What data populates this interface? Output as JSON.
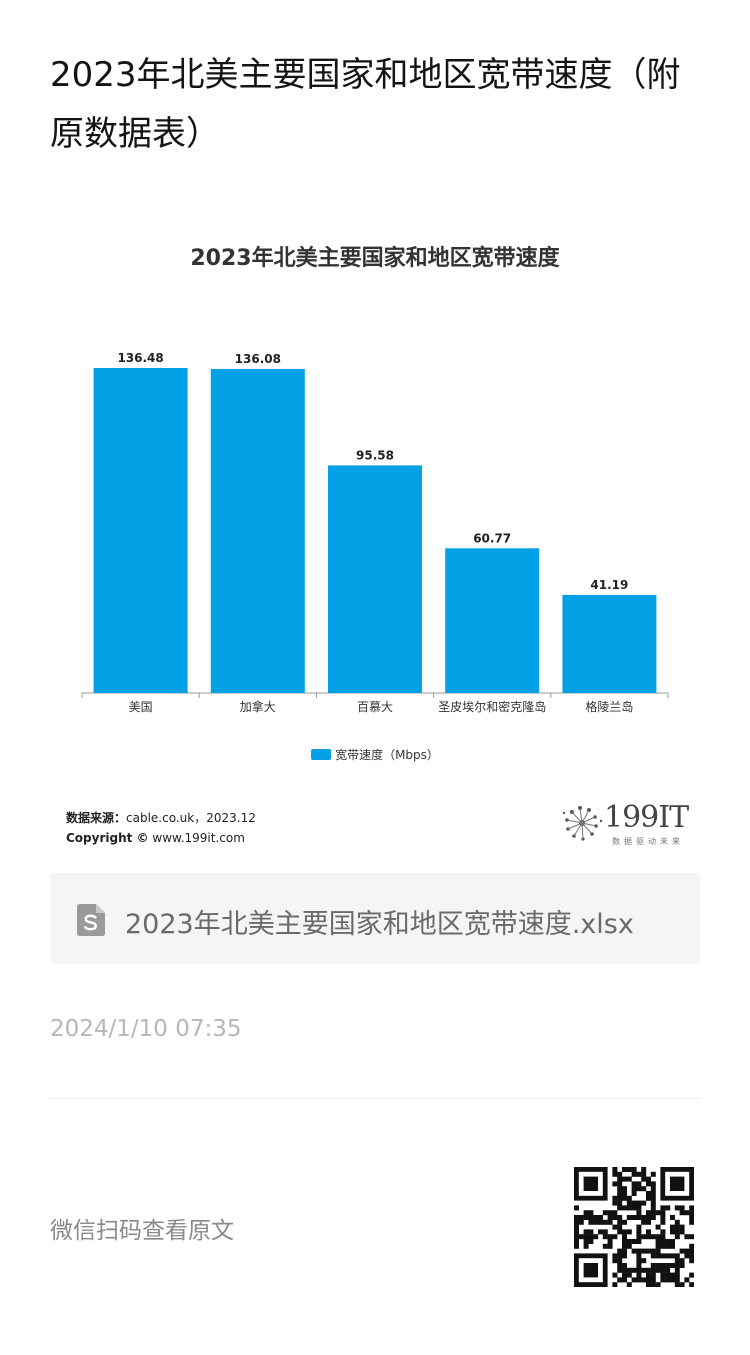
{
  "article": {
    "title": "2023年北美主要国家和地区宽带速度（附原数据表）"
  },
  "chart_data": {
    "type": "bar",
    "title": "2023年北美主要国家和地区宽带速度",
    "categories": [
      "美国",
      "加拿大",
      "百慕大",
      "圣皮埃尔和密克隆岛",
      "格陵兰岛"
    ],
    "series": [
      {
        "name": "宽带速度（Mbps）",
        "values": [
          136.48,
          136.08,
          95.58,
          60.77,
          41.19
        ]
      }
    ],
    "data_labels": [
      "136.48",
      "136.08",
      "95.58",
      "60.77",
      "41.19"
    ],
    "ylim": [
      0,
      140
    ],
    "grid": false,
    "legend": "bottom",
    "colors": {
      "bar": "#03a0e5"
    }
  },
  "source": {
    "label": "数据来源：",
    "text": "cable.co.uk，2023.12",
    "copyright_label": "Copyright ©",
    "copyright_text": "www.199it.com"
  },
  "brand": {
    "name": "199IT",
    "tagline": "数据驱动未来",
    "icon": "dandelion-logo"
  },
  "attachment": {
    "icon": "spreadsheet-file-icon",
    "filename": "2023年北美主要国家和地区宽带速度.xlsx"
  },
  "meta": {
    "date": "2024/1/10 07:35"
  },
  "footer": {
    "qr_caption": "微信扫码查看原文",
    "qr_icon": "qr-code"
  }
}
